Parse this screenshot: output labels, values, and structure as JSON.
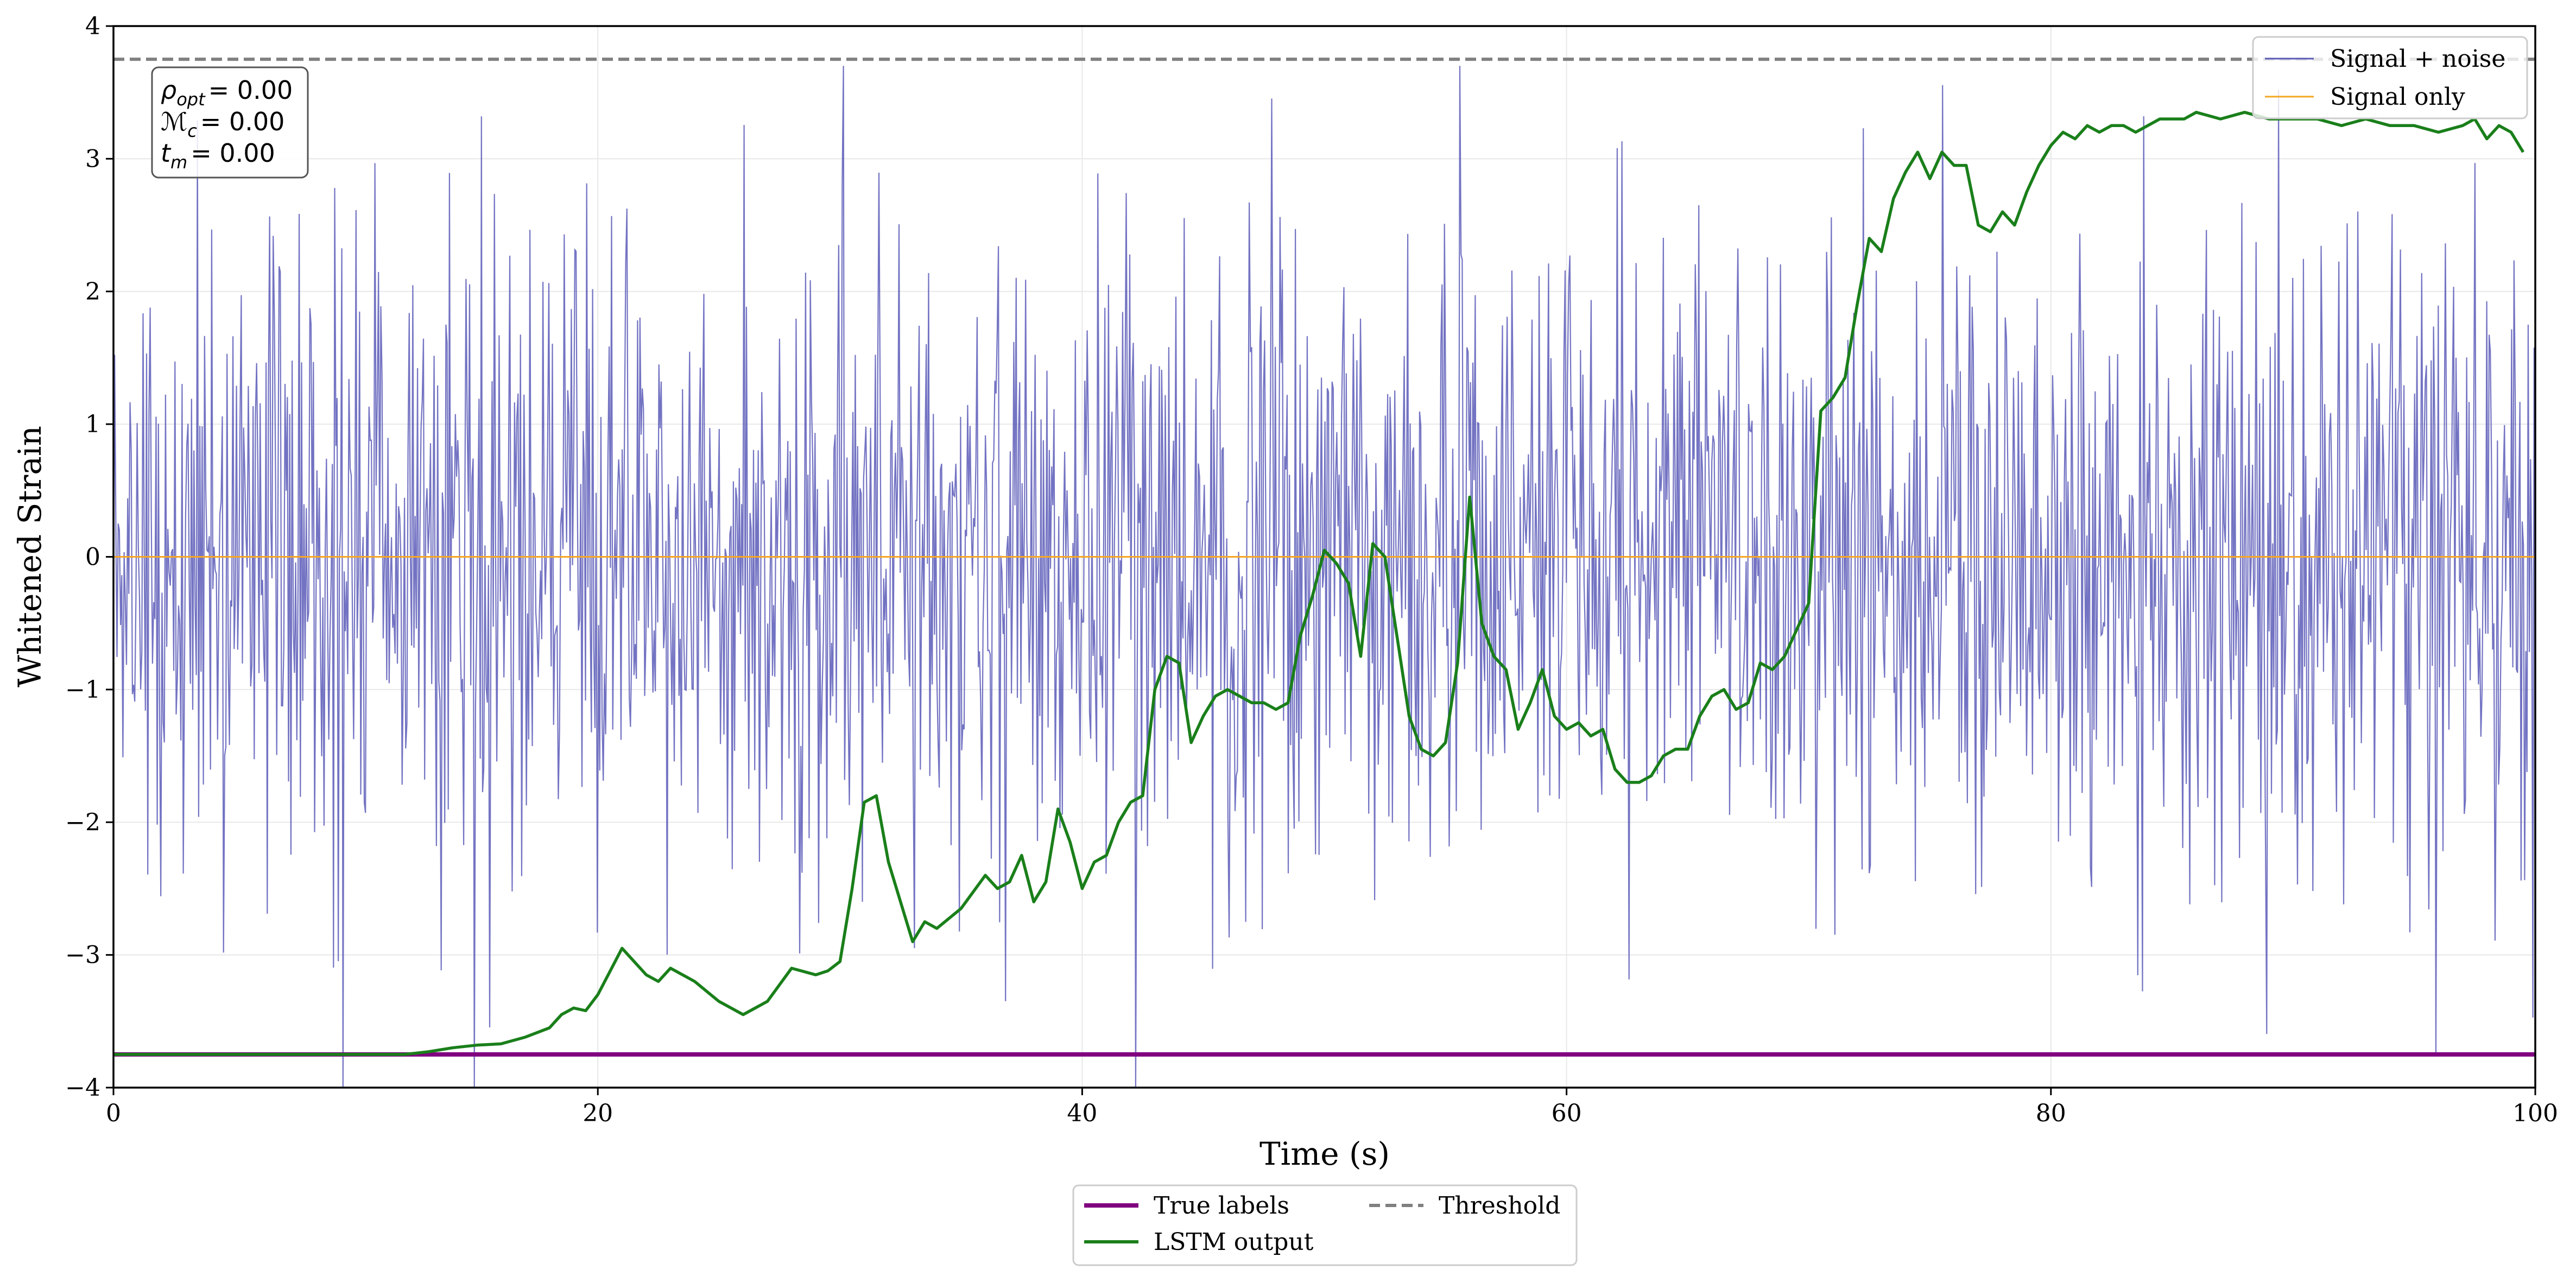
{
  "chart_data": {
    "type": "line",
    "xlabel": "Time (s)",
    "ylabel": "Whitened Strain",
    "xlim": [
      0,
      100
    ],
    "ylim": [
      -4,
      4
    ],
    "xticks": [
      0,
      20,
      40,
      60,
      80,
      100
    ],
    "yticks": [
      -4,
      -3,
      -2,
      -1,
      0,
      1,
      2,
      3,
      4
    ],
    "grid": true,
    "colors": {
      "signal_noise": "#5b5bb8",
      "signal_only": "#f5a623",
      "true_labels": "#800080",
      "lstm": "#1a7f1a",
      "threshold": "#808080"
    },
    "annotation": {
      "rho": {
        "symbol": "ρ",
        "sub": "opt",
        "value": "= 0.00"
      },
      "mc": {
        "symbol": "ℳ",
        "sub": "c",
        "value": "= 0.00"
      },
      "tm": {
        "symbol": "t",
        "sub": "m",
        "value": "= 0.00"
      }
    },
    "legend_upper": {
      "placement": "top-right",
      "entries": [
        "Signal + noise",
        "Signal only"
      ]
    },
    "legend_lower": {
      "placement": "below-center",
      "entries": [
        "True labels",
        "Threshold",
        "LSTM output"
      ]
    },
    "series": [
      {
        "name": "Signal + noise",
        "style": "noise",
        "n_points": 2048,
        "std": 1.2,
        "ymin": -4.0,
        "ymax": 3.7
      },
      {
        "name": "Signal only",
        "x": [
          0,
          100
        ],
        "y": [
          0,
          0
        ]
      },
      {
        "name": "True labels",
        "x": [
          0,
          100
        ],
        "y": [
          -3.75,
          -3.75
        ]
      },
      {
        "name": "Threshold",
        "x": [
          0,
          100
        ],
        "y": [
          3.75,
          3.75
        ]
      },
      {
        "name": "LSTM output",
        "x": [
          0,
          12,
          13,
          14,
          15,
          16,
          17,
          18,
          18.5,
          19,
          19.5,
          20,
          21,
          22,
          22.5,
          23,
          24,
          25,
          26,
          27,
          28,
          29,
          29.5,
          30,
          30.5,
          31,
          31.5,
          32,
          32.5,
          33,
          33.5,
          34,
          35,
          36,
          36.5,
          37,
          37.5,
          38,
          38.5,
          39,
          39.5,
          40,
          40.5,
          41,
          41.5,
          42,
          42.5,
          43,
          43.5,
          44,
          44.5,
          45,
          45.5,
          46,
          46.5,
          47,
          47.5,
          48,
          48.5,
          49,
          49.5,
          50,
          50.5,
          51,
          51.5,
          52,
          52.5,
          53,
          53.5,
          54,
          54.5,
          55,
          55.5,
          56,
          56.5,
          57,
          57.5,
          58,
          58.5,
          59,
          59.5,
          60,
          60.5,
          61,
          61.5,
          62,
          62.5,
          63,
          63.5,
          64,
          64.5,
          65,
          65.5,
          66,
          66.5,
          67,
          67.5,
          68,
          68.5,
          69,
          69.5,
          70,
          70.5,
          71,
          71.5,
          72,
          72.5,
          73,
          73.5,
          74,
          74.5,
          75,
          75.5,
          76,
          76.5,
          77,
          77.5,
          78,
          78.5,
          79,
          79.5,
          80,
          80.5,
          81,
          81.5,
          82,
          82.5,
          83,
          83.5,
          84,
          84.5,
          85,
          85.5,
          86,
          87,
          88,
          89,
          90,
          91,
          92,
          93,
          94,
          95,
          96,
          97,
          97.5,
          98,
          98.5,
          99,
          99.5
        ],
        "y": [
          -3.75,
          -3.75,
          -3.73,
          -3.7,
          -3.68,
          -3.67,
          -3.62,
          -3.55,
          -3.45,
          -3.4,
          -3.42,
          -3.3,
          -2.95,
          -3.15,
          -3.2,
          -3.1,
          -3.2,
          -3.35,
          -3.45,
          -3.35,
          -3.1,
          -3.15,
          -3.12,
          -3.05,
          -2.5,
          -1.85,
          -1.8,
          -2.3,
          -2.6,
          -2.9,
          -2.75,
          -2.8,
          -2.65,
          -2.4,
          -2.5,
          -2.45,
          -2.25,
          -2.6,
          -2.45,
          -1.9,
          -2.15,
          -2.5,
          -2.3,
          -2.25,
          -2.0,
          -1.85,
          -1.8,
          -1.0,
          -0.75,
          -0.8,
          -1.4,
          -1.2,
          -1.05,
          -1.0,
          -1.05,
          -1.1,
          -1.1,
          -1.15,
          -1.1,
          -0.6,
          -0.3,
          0.05,
          -0.05,
          -0.2,
          -0.75,
          0.1,
          0.0,
          -0.6,
          -1.2,
          -1.45,
          -1.5,
          -1.4,
          -0.8,
          0.45,
          -0.5,
          -0.75,
          -0.85,
          -1.3,
          -1.1,
          -0.85,
          -1.2,
          -1.3,
          -1.25,
          -1.35,
          -1.3,
          -1.6,
          -1.7,
          -1.7,
          -1.65,
          -1.5,
          -1.45,
          -1.45,
          -1.2,
          -1.05,
          -1.0,
          -1.15,
          -1.1,
          -0.8,
          -0.85,
          -0.75,
          -0.55,
          -0.35,
          1.1,
          1.2,
          1.35,
          1.9,
          2.4,
          2.3,
          2.7,
          2.9,
          3.05,
          2.85,
          3.05,
          2.95,
          2.95,
          2.5,
          2.45,
          2.6,
          2.5,
          2.75,
          2.95,
          3.1,
          3.2,
          3.15,
          3.25,
          3.2,
          3.25,
          3.25,
          3.2,
          3.25,
          3.3,
          3.3,
          3.3,
          3.35,
          3.3,
          3.35,
          3.3,
          3.3,
          3.3,
          3.25,
          3.3,
          3.25,
          3.25,
          3.2,
          3.25,
          3.3,
          3.15,
          3.25,
          3.2,
          3.05
        ]
      }
    ]
  }
}
